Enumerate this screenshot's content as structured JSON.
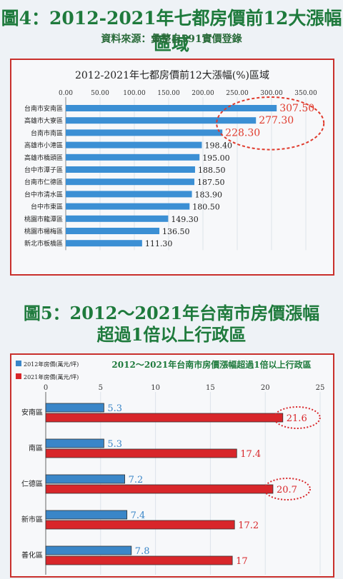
{
  "figure1": {
    "heading": "圖4：2012-2021年七都房價前12大漲幅區域",
    "source": "資料來源：彙整自591實價登錄",
    "chart_data": {
      "type": "bar",
      "orientation": "horizontal",
      "title": "2012-2021年七都房價前12大漲幅(%)區域",
      "categories": [
        "台南市安南區",
        "高雄市大寮區",
        "台南市南區",
        "高雄市小港區",
        "高雄市橋頭區",
        "台中市潭子區",
        "台南市仁德區",
        "台中市清水區",
        "台中市東區",
        "桃園市龍潭區",
        "桃園市楊梅區",
        "新北市板橋區"
      ],
      "values": [
        307.5,
        277.3,
        228.3,
        198.4,
        195.0,
        188.5,
        187.5,
        183.9,
        180.5,
        149.3,
        136.5,
        111.3
      ],
      "value_labels": [
        "307.50",
        "277.30",
        "228.30",
        "198.40",
        "195.00",
        "188.50",
        "187.50",
        "183.90",
        "180.50",
        "149.30",
        "136.50",
        "111.30"
      ],
      "highlighted_count": 3,
      "xlim": [
        0,
        350
      ],
      "xticks": [
        "0.00",
        "50.00",
        "100.00",
        "150.00",
        "200.00",
        "250.00",
        "300.00",
        "350.00"
      ],
      "bar_color": "#3b8fd4",
      "highlight_color": "#e03a2c"
    }
  },
  "figure2": {
    "heading_line1": "圖5：2012～2021年台南市房價漲幅",
    "heading_line2": "超過1倍以上行政區",
    "chart_data": {
      "type": "bar",
      "orientation": "horizontal",
      "title": "2012～2021年台南市房價漲幅超過1倍以上行政區",
      "categories": [
        "安南區",
        "南區",
        "仁德區",
        "新市區",
        "善化區"
      ],
      "series": [
        {
          "name": "2012年房價(萬元/坪)",
          "values": [
            5.3,
            5.3,
            7.2,
            7.4,
            7.8
          ],
          "labels": [
            "5.3",
            "5.3",
            "7.2",
            "7.4",
            "7.8"
          ],
          "color": "#3a86c8"
        },
        {
          "name": "2021年房價(萬元/坪)",
          "values": [
            21.6,
            17.4,
            20.7,
            17.2,
            17
          ],
          "labels": [
            "21.6",
            "17.4",
            "20.7",
            "17.2",
            "17"
          ],
          "color": "#d8262a"
        }
      ],
      "highlighted_categories": [
        "安南區",
        "仁德區"
      ],
      "xlim": [
        0,
        25
      ],
      "xticks": [
        "0",
        "5",
        "10",
        "15",
        "20",
        "25"
      ]
    }
  }
}
